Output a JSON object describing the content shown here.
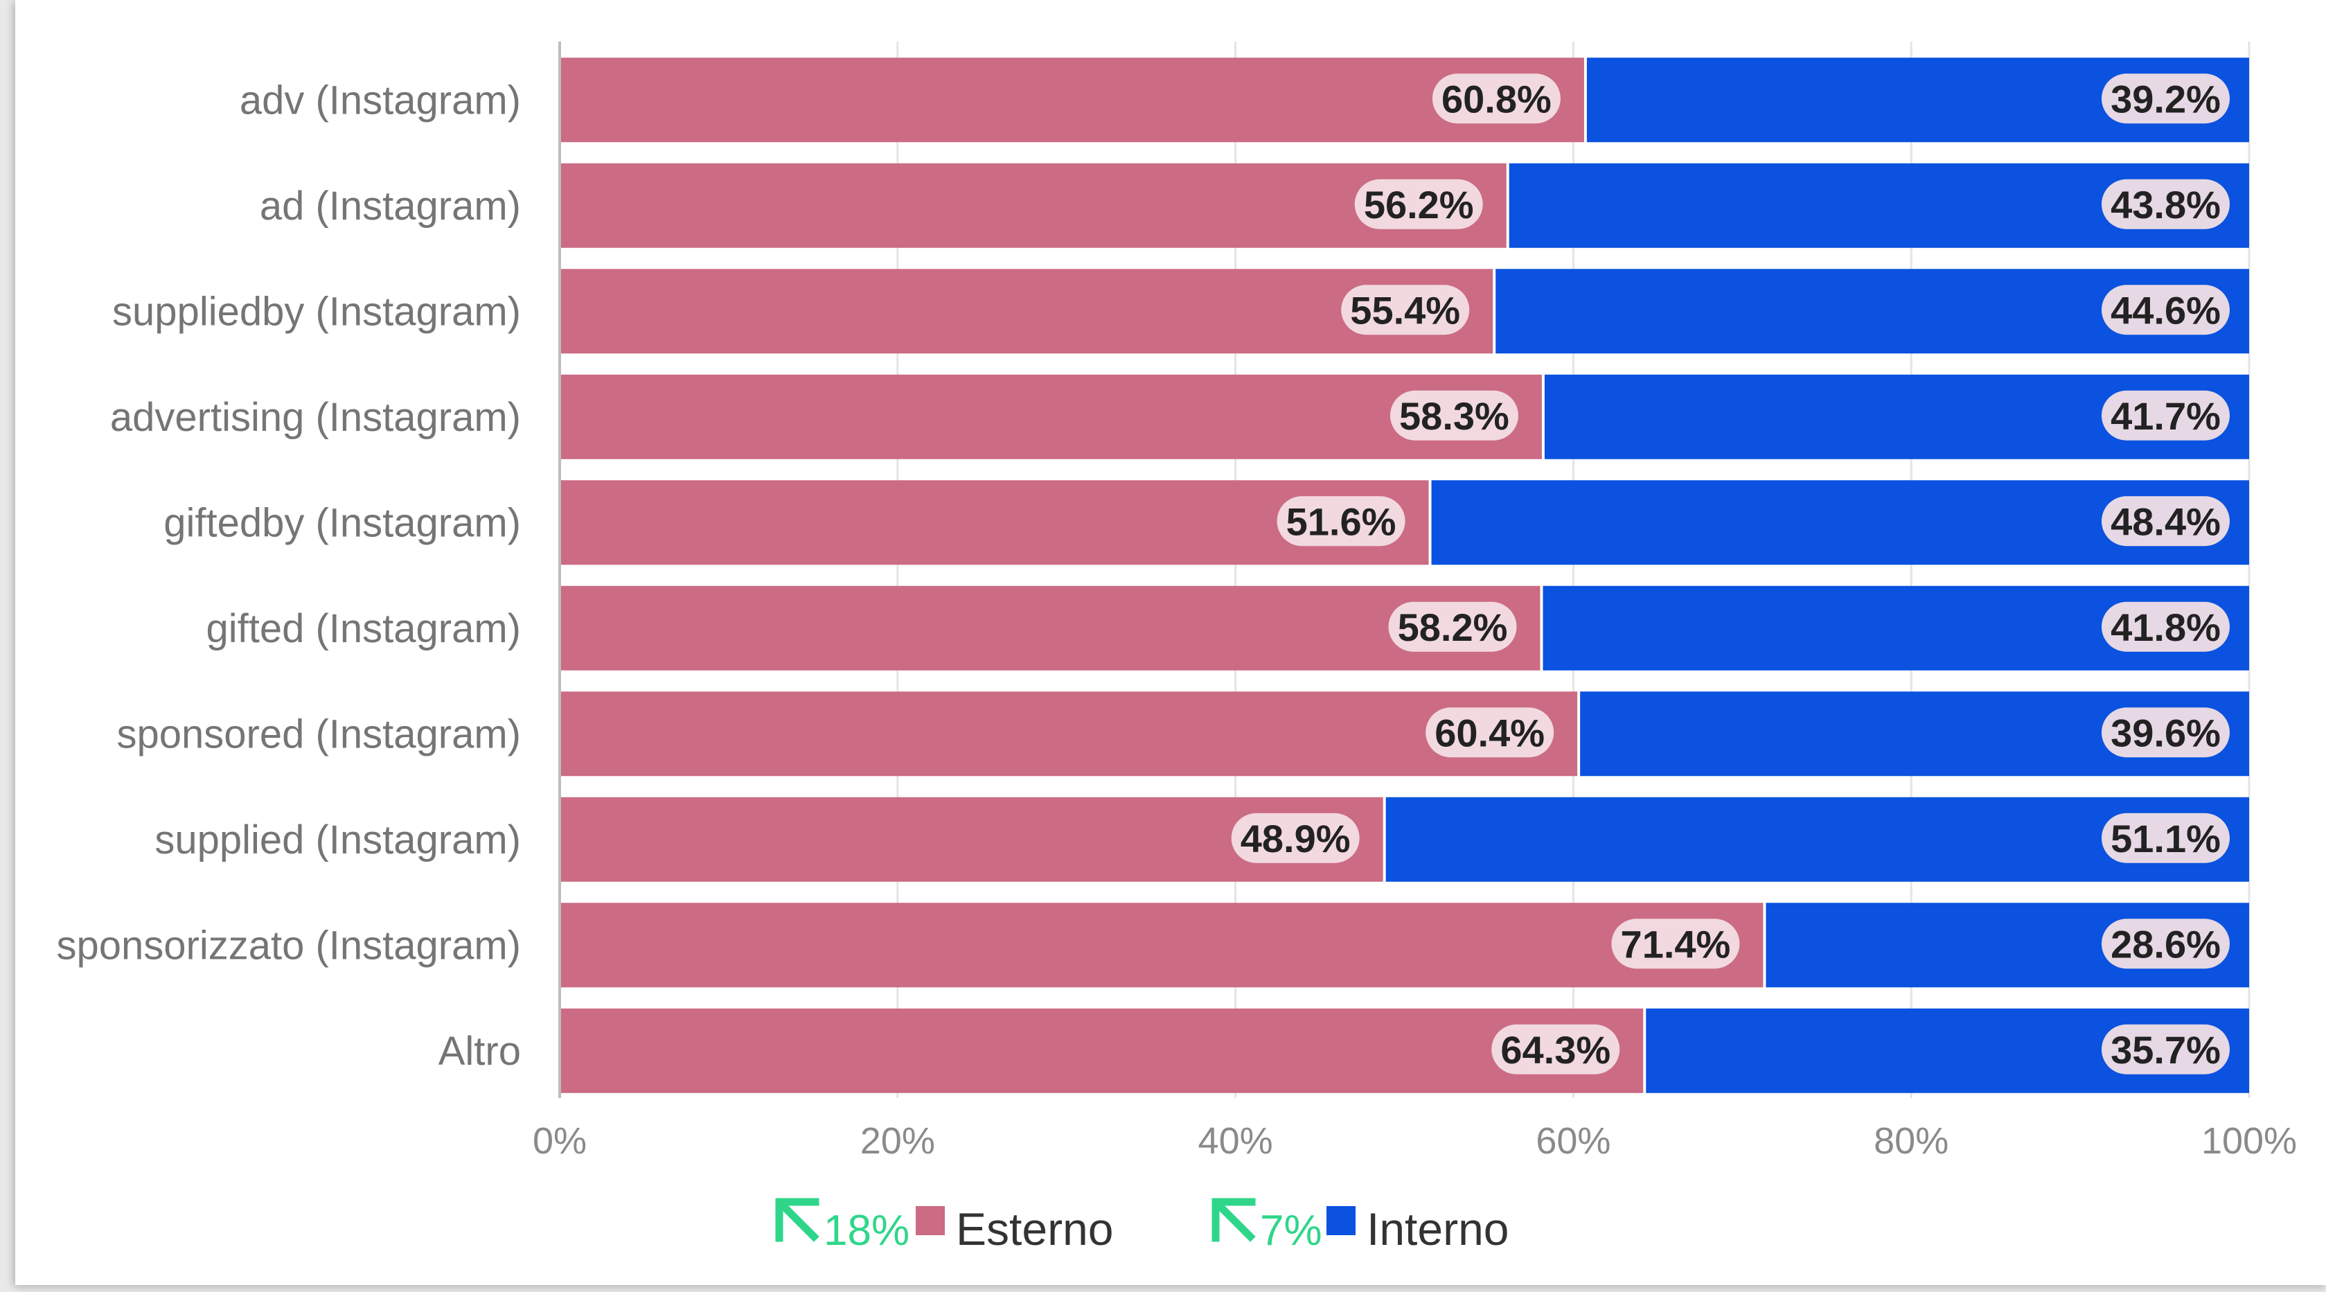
{
  "chart_data": {
    "type": "bar",
    "orientation": "horizontal",
    "stacked": true,
    "categories": [
      "adv (Instagram)",
      "ad (Instagram)",
      "suppliedby (Instagram)",
      "advertising (Instagram)",
      "giftedby (Instagram)",
      "gifted (Instagram)",
      "sponsored (Instagram)",
      "supplied (Instagram)",
      "sponsorizzato (Instagram)",
      "Altro"
    ],
    "series": [
      {
        "name": "Esterno",
        "color": "#cc6b84",
        "values": [
          60.8,
          56.2,
          55.4,
          58.3,
          51.6,
          58.2,
          60.4,
          48.9,
          71.4,
          64.3
        ],
        "labels": [
          "60.8%",
          "56.2%",
          "55.4%",
          "58.3%",
          "51.6%",
          "58.2%",
          "60.4%",
          "48.9%",
          "71.4%",
          "64.3%"
        ]
      },
      {
        "name": "Interno",
        "color": "#0a52df",
        "values": [
          39.2,
          43.8,
          44.6,
          41.7,
          48.4,
          41.8,
          39.6,
          51.1,
          28.6,
          35.7
        ],
        "labels": [
          "39.2%",
          "43.8%",
          "44.6%",
          "41.7%",
          "48.4%",
          "41.8%",
          "39.6%",
          "51.1%",
          "28.6%",
          "35.7%"
        ]
      }
    ],
    "xlim": [
      0,
      100
    ],
    "x_ticks": [
      "0%",
      "20%",
      "40%",
      "60%",
      "80%",
      "100%"
    ],
    "grid": true,
    "legend": {
      "placement": "bottom",
      "items": [
        {
          "change": "18%",
          "direction": "up-left-arrow-icon",
          "series": "Esterno"
        },
        {
          "change": "7%",
          "direction": "up-left-arrow-icon",
          "series": "Interno"
        }
      ],
      "change_color": "#2fd68a"
    }
  }
}
